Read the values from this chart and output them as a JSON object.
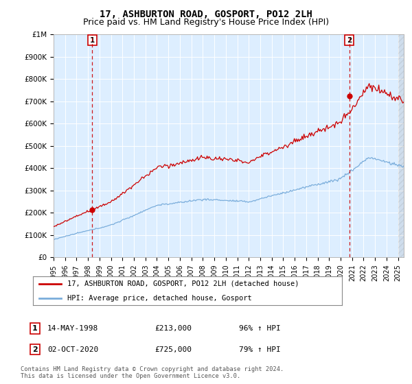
{
  "title": "17, ASHBURTON ROAD, GOSPORT, PO12 2LH",
  "subtitle": "Price paid vs. HM Land Registry's House Price Index (HPI)",
  "legend_line1": "17, ASHBURTON ROAD, GOSPORT, PO12 2LH (detached house)",
  "legend_line2": "HPI: Average price, detached house, Gosport",
  "annotation1_label": "1",
  "annotation1_date": "14-MAY-1998",
  "annotation1_price": "£213,000",
  "annotation1_hpi": "96% ↑ HPI",
  "annotation1_year": 1998.37,
  "annotation1_value": 213000,
  "annotation2_label": "2",
  "annotation2_date": "02-OCT-2020",
  "annotation2_price": "£725,000",
  "annotation2_hpi": "79% ↑ HPI",
  "annotation2_year": 2020.75,
  "annotation2_value": 725000,
  "footer": "Contains HM Land Registry data © Crown copyright and database right 2024.\nThis data is licensed under the Open Government Licence v3.0.",
  "ylim": [
    0,
    1000000
  ],
  "xlim_min": 1995.0,
  "xlim_max": 2025.5,
  "red_color": "#cc0000",
  "blue_color": "#7aaddb",
  "plot_bg_color": "#ddeeff",
  "bg_color": "#ffffff",
  "grid_color": "#ffffff",
  "title_fontsize": 10,
  "subtitle_fontsize": 9
}
